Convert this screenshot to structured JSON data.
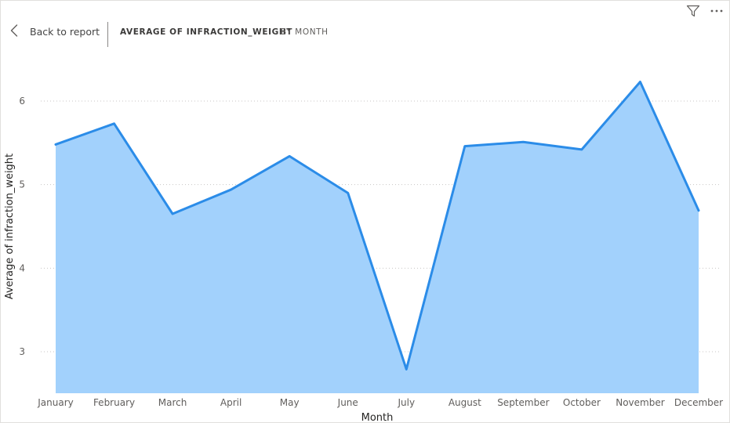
{
  "header": {
    "back_label": "Back to report",
    "title": "AVERAGE OF INFRACTION_WEIGHT",
    "subtitle": "BY MONTH"
  },
  "toolbar": {
    "filter_icon": "filter-icon",
    "more_icon": "more-options-icon"
  },
  "colors": {
    "line": "#2b8ce8",
    "area": "#a2d1fc",
    "grid": "#c8c6c4",
    "text": "#605e5c"
  },
  "chart_data": {
    "type": "area",
    "title": "AVERAGE OF INFRACTION_WEIGHT BY MONTH",
    "xlabel": "Month",
    "ylabel": "Average of infraction_weight",
    "categories": [
      "January",
      "February",
      "March",
      "April",
      "May",
      "June",
      "July",
      "August",
      "September",
      "October",
      "November",
      "December"
    ],
    "values": [
      5.48,
      5.73,
      4.65,
      4.94,
      5.34,
      4.9,
      2.79,
      5.46,
      5.51,
      5.42,
      6.23,
      4.69
    ],
    "yticks": [
      3,
      4,
      5,
      6
    ],
    "ylim": [
      2.5,
      6.7
    ],
    "grid": true,
    "legend": "none"
  }
}
